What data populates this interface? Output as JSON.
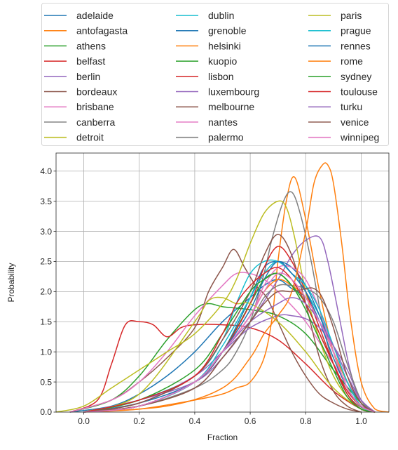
{
  "chart_data": {
    "type": "line",
    "title": "",
    "xlabel": "Fraction",
    "ylabel": "Probability",
    "xlim": [
      -0.1,
      1.1
    ],
    "ylim": [
      0,
      4.3
    ],
    "xticks": [
      0.0,
      0.2,
      0.4,
      0.6,
      0.8,
      1.0
    ],
    "xtick_labels": [
      "0.0",
      "0.2",
      "0.4",
      "0.6",
      "0.8",
      "1.0"
    ],
    "yticks": [
      0.0,
      0.5,
      1.0,
      1.5,
      2.0,
      2.5,
      3.0,
      3.5,
      4.0
    ],
    "ytick_labels": [
      "0.0",
      "0.5",
      "1.0",
      "1.5",
      "2.0",
      "2.5",
      "3.0",
      "3.5",
      "4.0"
    ],
    "grid": true,
    "legend_placement": "above",
    "legend_columns": 3,
    "series": [
      {
        "name": "adelaide",
        "color": "#1f77b4",
        "x": [
          -0.05,
          0.1,
          0.2,
          0.3,
          0.4,
          0.5,
          0.6,
          0.65,
          0.7,
          0.75,
          0.8,
          0.85,
          0.9,
          0.95,
          1.0,
          1.05
        ],
        "y": [
          0,
          0.1,
          0.3,
          0.6,
          1.0,
          1.5,
          1.9,
          2.1,
          2.2,
          2.05,
          1.9,
          1.5,
          1.0,
          0.5,
          0.15,
          0
        ]
      },
      {
        "name": "antofagasta",
        "color": "#ff7f0e",
        "x": [
          0.0,
          0.2,
          0.4,
          0.5,
          0.55,
          0.6,
          0.65,
          0.68,
          0.7,
          0.73,
          0.76,
          0.8,
          0.85,
          0.9,
          0.95,
          1.0,
          1.05
        ],
        "y": [
          0,
          0.05,
          0.2,
          0.3,
          0.4,
          0.5,
          0.9,
          1.6,
          2.5,
          3.5,
          3.9,
          3.2,
          2.0,
          1.0,
          0.4,
          0.1,
          0
        ]
      },
      {
        "name": "athens",
        "color": "#2ca02c",
        "x": [
          -0.05,
          0.1,
          0.2,
          0.3,
          0.4,
          0.45,
          0.5,
          0.6,
          0.7,
          0.8,
          0.9,
          1.0,
          1.05
        ],
        "y": [
          0,
          0.2,
          0.6,
          1.2,
          1.7,
          1.8,
          1.75,
          1.7,
          1.6,
          1.3,
          0.7,
          0.15,
          0
        ]
      },
      {
        "name": "belfast",
        "color": "#d62728",
        "x": [
          -0.05,
          0.05,
          0.1,
          0.15,
          0.2,
          0.25,
          0.3,
          0.35,
          0.4,
          0.5,
          0.6,
          0.7,
          0.8,
          0.9,
          1.0,
          1.05
        ],
        "y": [
          0,
          0.2,
          0.8,
          1.45,
          1.5,
          1.45,
          1.25,
          1.4,
          1.45,
          1.45,
          1.4,
          1.2,
          0.8,
          0.35,
          0.05,
          0
        ]
      },
      {
        "name": "berlin",
        "color": "#9467bd",
        "x": [
          0.0,
          0.2,
          0.4,
          0.5,
          0.6,
          0.7,
          0.75,
          0.8,
          0.85,
          0.88,
          0.92,
          0.96,
          1.0,
          1.05
        ],
        "y": [
          0,
          0.2,
          0.5,
          0.9,
          1.5,
          2.2,
          2.6,
          2.85,
          2.9,
          2.5,
          1.6,
          0.7,
          0.15,
          0
        ]
      },
      {
        "name": "bordeaux",
        "color": "#8c564b",
        "x": [
          -0.05,
          0.1,
          0.2,
          0.3,
          0.4,
          0.45,
          0.5,
          0.54,
          0.58,
          0.62,
          0.66,
          0.7,
          0.75,
          0.8,
          0.85,
          0.9,
          0.95,
          1.0
        ],
        "y": [
          0,
          0.2,
          0.5,
          0.9,
          1.4,
          2.0,
          2.4,
          2.7,
          2.4,
          2.1,
          1.9,
          1.5,
          1.0,
          0.6,
          0.3,
          0.15,
          0.05,
          0
        ]
      },
      {
        "name": "brisbane",
        "color": "#e377c2",
        "x": [
          -0.05,
          0.1,
          0.2,
          0.3,
          0.4,
          0.5,
          0.55,
          0.6,
          0.65,
          0.7,
          0.8,
          0.9,
          1.0,
          1.05
        ],
        "y": [
          0,
          0.2,
          0.5,
          1.0,
          1.6,
          2.1,
          2.3,
          2.3,
          2.2,
          2.0,
          1.5,
          0.8,
          0.2,
          0
        ]
      },
      {
        "name": "canberra",
        "color": "#7f7f7f",
        "x": [
          0.0,
          0.2,
          0.4,
          0.5,
          0.55,
          0.6,
          0.65,
          0.68,
          0.72,
          0.75,
          0.78,
          0.82,
          0.86,
          0.9,
          0.95,
          1.0,
          1.05
        ],
        "y": [
          0,
          0.1,
          0.4,
          0.7,
          1.0,
          1.5,
          2.3,
          2.9,
          3.5,
          3.65,
          3.3,
          2.5,
          1.5,
          0.8,
          0.3,
          0.08,
          0
        ]
      },
      {
        "name": "detroit",
        "color": "#bcbd22",
        "x": [
          -0.1,
          0.0,
          0.1,
          0.2,
          0.3,
          0.4,
          0.5,
          0.55,
          0.6,
          0.65,
          0.7,
          0.73,
          0.76,
          0.8,
          0.85,
          0.9,
          0.95,
          1.0,
          1.05
        ],
        "y": [
          0,
          0.1,
          0.4,
          0.7,
          1.0,
          1.3,
          1.8,
          2.2,
          2.8,
          3.3,
          3.5,
          3.4,
          2.9,
          2.0,
          1.2,
          0.6,
          0.25,
          0.05,
          0
        ]
      },
      {
        "name": "dublin",
        "color": "#17becf",
        "x": [
          0.0,
          0.2,
          0.4,
          0.5,
          0.55,
          0.6,
          0.65,
          0.7,
          0.75,
          0.8,
          0.85,
          0.9,
          0.95,
          1.0,
          1.05
        ],
        "y": [
          0,
          0.2,
          0.6,
          1.2,
          1.8,
          2.3,
          2.5,
          2.5,
          2.3,
          2.0,
          1.6,
          1.1,
          0.5,
          0.1,
          0
        ]
      },
      {
        "name": "grenoble",
        "color": "#1f77b4",
        "x": [
          0.0,
          0.2,
          0.4,
          0.5,
          0.6,
          0.65,
          0.7,
          0.75,
          0.8,
          0.85,
          0.9,
          0.95,
          1.0,
          1.05
        ],
        "y": [
          0,
          0.15,
          0.5,
          1.0,
          1.9,
          2.4,
          2.5,
          2.4,
          2.1,
          1.6,
          1.0,
          0.4,
          0.1,
          0
        ]
      },
      {
        "name": "helsinki",
        "color": "#ff7f0e",
        "x": [
          0.0,
          0.2,
          0.4,
          0.5,
          0.6,
          0.65,
          0.7,
          0.75,
          0.8,
          0.85,
          0.9,
          0.95,
          1.0,
          1.05
        ],
        "y": [
          0,
          0.1,
          0.5,
          1.0,
          1.6,
          2.0,
          2.2,
          2.1,
          1.9,
          1.5,
          1.0,
          0.5,
          0.1,
          0
        ]
      },
      {
        "name": "kuopio",
        "color": "#2ca02c",
        "x": [
          0.0,
          0.2,
          0.4,
          0.5,
          0.6,
          0.65,
          0.7,
          0.75,
          0.8,
          0.85,
          0.9,
          0.95,
          1.0,
          1.05
        ],
        "y": [
          0,
          0.1,
          0.5,
          1.0,
          1.8,
          2.2,
          2.3,
          2.1,
          1.8,
          1.3,
          0.8,
          0.3,
          0.05,
          0
        ]
      },
      {
        "name": "lisbon",
        "color": "#d62728",
        "x": [
          0.0,
          0.2,
          0.4,
          0.5,
          0.6,
          0.65,
          0.7,
          0.75,
          0.8,
          0.85,
          0.9,
          0.95,
          1.0,
          1.05
        ],
        "y": [
          0,
          0.1,
          0.5,
          1.0,
          1.8,
          2.4,
          2.75,
          2.5,
          2.0,
          1.4,
          0.8,
          0.3,
          0.05,
          0
        ]
      },
      {
        "name": "luxembourg",
        "color": "#9467bd",
        "x": [
          0.0,
          0.2,
          0.4,
          0.5,
          0.6,
          0.7,
          0.75,
          0.8,
          0.85,
          0.9,
          0.95,
          1.0,
          1.05
        ],
        "y": [
          0,
          0.15,
          0.6,
          1.0,
          1.4,
          1.6,
          1.6,
          1.55,
          1.4,
          1.1,
          0.7,
          0.2,
          0
        ]
      },
      {
        "name": "melbourne",
        "color": "#8c564b",
        "x": [
          0.0,
          0.2,
          0.4,
          0.5,
          0.6,
          0.65,
          0.7,
          0.75,
          0.8,
          0.85,
          0.9,
          0.95,
          1.0
        ],
        "y": [
          0,
          0.15,
          0.6,
          1.2,
          2.0,
          2.6,
          2.95,
          2.6,
          1.8,
          0.9,
          0.35,
          0.1,
          0
        ]
      },
      {
        "name": "nantes",
        "color": "#e377c2",
        "x": [
          0.0,
          0.2,
          0.4,
          0.5,
          0.6,
          0.65,
          0.7,
          0.75,
          0.8,
          0.85,
          0.9,
          0.95,
          1.0,
          1.05
        ],
        "y": [
          0,
          0.1,
          0.5,
          1.0,
          1.6,
          2.1,
          2.4,
          2.4,
          2.2,
          1.7,
          1.0,
          0.4,
          0.1,
          0
        ]
      },
      {
        "name": "palermo",
        "color": "#7f7f7f",
        "x": [
          0.0,
          0.2,
          0.4,
          0.5,
          0.6,
          0.65,
          0.7,
          0.75,
          0.8,
          0.85,
          0.9,
          0.95,
          1.0,
          1.05
        ],
        "y": [
          0,
          0.1,
          0.4,
          0.9,
          1.5,
          1.9,
          2.1,
          2.1,
          2.05,
          1.9,
          1.5,
          0.8,
          0.2,
          0
        ]
      },
      {
        "name": "paris",
        "color": "#bcbd22",
        "x": [
          0.0,
          0.2,
          0.4,
          0.45,
          0.5,
          0.55,
          0.6,
          0.7,
          0.8,
          0.9,
          1.0,
          1.05
        ],
        "y": [
          0,
          0.3,
          1.5,
          1.85,
          1.9,
          1.8,
          1.8,
          1.5,
          1.0,
          0.4,
          0.05,
          0
        ]
      },
      {
        "name": "prague",
        "color": "#17becf",
        "x": [
          0.0,
          0.2,
          0.4,
          0.5,
          0.6,
          0.65,
          0.7,
          0.75,
          0.8,
          0.85,
          0.9,
          0.95,
          1.0,
          1.05
        ],
        "y": [
          0,
          0.1,
          0.5,
          1.1,
          1.9,
          2.3,
          2.5,
          2.3,
          2.1,
          1.7,
          1.1,
          0.5,
          0.1,
          0
        ]
      },
      {
        "name": "rennes",
        "color": "#1f77b4",
        "x": [
          0.0,
          0.2,
          0.4,
          0.5,
          0.6,
          0.65,
          0.7,
          0.75,
          0.8,
          0.85,
          0.9,
          0.95,
          1.0,
          1.05
        ],
        "y": [
          0,
          0.1,
          0.5,
          1.0,
          1.7,
          2.2,
          2.5,
          2.3,
          2.0,
          1.5,
          0.9,
          0.4,
          0.1,
          0
        ]
      },
      {
        "name": "rome",
        "color": "#ff7f0e",
        "x": [
          0.0,
          0.3,
          0.5,
          0.6,
          0.65,
          0.7,
          0.75,
          0.8,
          0.83,
          0.86,
          0.88,
          0.9,
          0.93,
          0.96,
          1.0,
          1.05,
          1.1
        ],
        "y": [
          0,
          0.1,
          0.4,
          0.9,
          1.3,
          1.6,
          2.0,
          3.0,
          3.8,
          4.1,
          4.1,
          3.8,
          2.8,
          1.6,
          0.5,
          0.05,
          0
        ]
      },
      {
        "name": "sydney",
        "color": "#2ca02c",
        "x": [
          0.0,
          0.2,
          0.4,
          0.5,
          0.6,
          0.65,
          0.7,
          0.75,
          0.8,
          0.85,
          0.9,
          0.95,
          1.0,
          1.05
        ],
        "y": [
          0,
          0.2,
          0.7,
          1.3,
          2.0,
          2.2,
          2.3,
          2.1,
          1.7,
          1.2,
          0.7,
          0.25,
          0.05,
          0
        ]
      },
      {
        "name": "toulouse",
        "color": "#d62728",
        "x": [
          0.0,
          0.2,
          0.4,
          0.5,
          0.55,
          0.6,
          0.65,
          0.7,
          0.75,
          0.8,
          0.85,
          0.9,
          0.95,
          1.0,
          1.05
        ],
        "y": [
          0,
          0.2,
          0.6,
          1.3,
          1.8,
          2.1,
          2.3,
          2.4,
          2.2,
          1.8,
          1.3,
          0.8,
          0.35,
          0.1,
          0
        ]
      },
      {
        "name": "turku",
        "color": "#9467bd",
        "x": [
          0.0,
          0.2,
          0.4,
          0.5,
          0.6,
          0.7,
          0.75,
          0.8,
          0.85,
          0.9,
          0.95,
          1.0,
          1.05
        ],
        "y": [
          0,
          0.1,
          0.5,
          1.0,
          1.5,
          1.8,
          1.9,
          1.8,
          1.5,
          1.1,
          0.6,
          0.2,
          0
        ]
      },
      {
        "name": "venice",
        "color": "#8c564b",
        "x": [
          0.0,
          0.2,
          0.4,
          0.5,
          0.6,
          0.65,
          0.7,
          0.75,
          0.8,
          0.83,
          0.86,
          0.9,
          0.95,
          1.0,
          1.05
        ],
        "y": [
          0,
          0.1,
          0.4,
          0.9,
          1.5,
          1.8,
          2.0,
          2.0,
          2.05,
          2.05,
          1.9,
          1.4,
          0.6,
          0.15,
          0
        ]
      },
      {
        "name": "winnipeg",
        "color": "#e377c2",
        "x": [
          0.0,
          0.2,
          0.4,
          0.5,
          0.6,
          0.65,
          0.7,
          0.75,
          0.8,
          0.85,
          0.9,
          0.95,
          1.0,
          1.05
        ],
        "y": [
          0,
          0.1,
          0.5,
          1.0,
          1.6,
          2.0,
          2.3,
          2.2,
          1.9,
          1.5,
          1.0,
          0.4,
          0.1,
          0
        ]
      }
    ]
  }
}
